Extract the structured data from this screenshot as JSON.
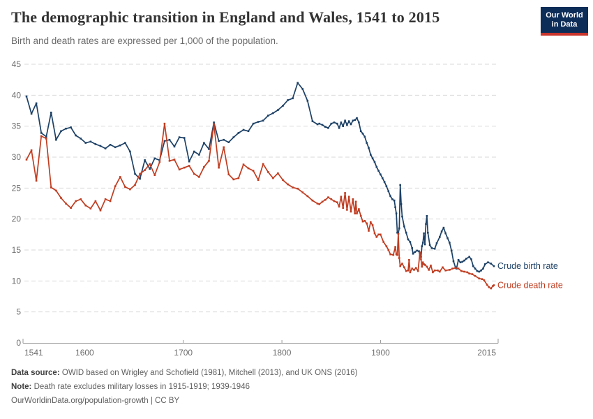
{
  "header": {
    "title": "The demographic transition in England and Wales, 1541 to 2015",
    "subtitle": "Birth and death rates are expressed per 1,000 of the population.",
    "logo": {
      "line1": "Our World",
      "line2": "in Data",
      "bg_color": "#0d2d59",
      "accent_color": "#c9342c"
    }
  },
  "footer": {
    "source_label": "Data source:",
    "source_text": "OWID based on Wrigley and Schofield (1981), Mitchell (2013), and UK ONS (2016)",
    "note_label": "Note:",
    "note_text": "Death rate excludes military losses in 1915-1919; 1939-1946",
    "license_text": "OurWorldinData.org/population-growth | CC BY"
  },
  "chart_data": {
    "type": "line",
    "title": "The demographic transition in England and Wales, 1541 to 2015",
    "subtitle": "Birth and death rates are expressed per 1,000 of the population.",
    "xlabel": "",
    "ylabel": "",
    "xlim": [
      1541,
      2015
    ],
    "ylim": [
      0,
      45
    ],
    "yticks": [
      0,
      5,
      10,
      15,
      20,
      25,
      30,
      35,
      40,
      45
    ],
    "xticks": [
      1541,
      1600,
      1700,
      1800,
      1900,
      2015
    ],
    "xtick_marks": [
      1700,
      1800,
      1900
    ],
    "grid": "horizontal-dashed",
    "legend_position": "end-of-line-labels",
    "marker": "square",
    "axis_color": "#9a9a9a",
    "grid_color": "#d9d9d9",
    "tick_label_color": "#6e6e6e",
    "series": [
      {
        "name": "Crude birth rate",
        "color": "#1d4166",
        "points": [
          [
            1541,
            39.8
          ],
          [
            1546,
            37.0
          ],
          [
            1551,
            38.7
          ],
          [
            1556,
            33.9
          ],
          [
            1561,
            33.3
          ],
          [
            1566,
            37.2
          ],
          [
            1571,
            32.8
          ],
          [
            1576,
            34.2
          ],
          [
            1581,
            34.6
          ],
          [
            1586,
            34.8
          ],
          [
            1591,
            33.5
          ],
          [
            1596,
            33.0
          ],
          [
            1601,
            32.3
          ],
          [
            1606,
            32.5
          ],
          [
            1611,
            32.1
          ],
          [
            1616,
            31.8
          ],
          [
            1621,
            31.4
          ],
          [
            1626,
            32.0
          ],
          [
            1631,
            31.6
          ],
          [
            1636,
            31.9
          ],
          [
            1641,
            32.3
          ],
          [
            1646,
            30.9
          ],
          [
            1651,
            27.3
          ],
          [
            1656,
            26.5
          ],
          [
            1661,
            29.5
          ],
          [
            1666,
            28.1
          ],
          [
            1671,
            29.8
          ],
          [
            1676,
            29.5
          ],
          [
            1681,
            32.6
          ],
          [
            1686,
            32.8
          ],
          [
            1691,
            31.7
          ],
          [
            1696,
            33.2
          ],
          [
            1701,
            33.1
          ],
          [
            1706,
            29.3
          ],
          [
            1711,
            30.9
          ],
          [
            1716,
            30.4
          ],
          [
            1721,
            32.3
          ],
          [
            1726,
            31.3
          ],
          [
            1731,
            35.6
          ],
          [
            1736,
            32.6
          ],
          [
            1741,
            32.8
          ],
          [
            1746,
            32.4
          ],
          [
            1751,
            33.2
          ],
          [
            1756,
            33.9
          ],
          [
            1761,
            34.4
          ],
          [
            1766,
            34.2
          ],
          [
            1771,
            35.4
          ],
          [
            1776,
            35.7
          ],
          [
            1781,
            35.9
          ],
          [
            1786,
            36.7
          ],
          [
            1791,
            37.1
          ],
          [
            1796,
            37.6
          ],
          [
            1801,
            38.3
          ],
          [
            1806,
            39.2
          ],
          [
            1811,
            39.5
          ],
          [
            1816,
            42.0
          ],
          [
            1821,
            41.0
          ],
          [
            1826,
            39.1
          ],
          [
            1831,
            35.8
          ],
          [
            1836,
            35.3
          ],
          [
            1838,
            35.4
          ],
          [
            1841,
            35.2
          ],
          [
            1844,
            34.9
          ],
          [
            1847,
            34.7
          ],
          [
            1850,
            35.4
          ],
          [
            1853,
            35.6
          ],
          [
            1856,
            35.4
          ],
          [
            1858,
            34.7
          ],
          [
            1860,
            35.6
          ],
          [
            1862,
            35.0
          ],
          [
            1864,
            35.9
          ],
          [
            1866,
            35.2
          ],
          [
            1868,
            35.8
          ],
          [
            1870,
            35.3
          ],
          [
            1872,
            35.9
          ],
          [
            1874,
            36.0
          ],
          [
            1876,
            36.3
          ],
          [
            1878,
            35.6
          ],
          [
            1880,
            34.2
          ],
          [
            1882,
            33.8
          ],
          [
            1884,
            33.3
          ],
          [
            1886,
            32.3
          ],
          [
            1888,
            31.5
          ],
          [
            1890,
            30.4
          ],
          [
            1892,
            29.8
          ],
          [
            1894,
            29.2
          ],
          [
            1896,
            28.4
          ],
          [
            1898,
            27.8
          ],
          [
            1900,
            27.2
          ],
          [
            1902,
            26.6
          ],
          [
            1904,
            26.0
          ],
          [
            1906,
            25.3
          ],
          [
            1908,
            24.5
          ],
          [
            1910,
            23.7
          ],
          [
            1912,
            23.2
          ],
          [
            1914,
            23.0
          ],
          [
            1915,
            21.9
          ],
          [
            1916,
            20.9
          ],
          [
            1917,
            17.8
          ],
          [
            1918,
            17.7
          ],
          [
            1919,
            18.5
          ],
          [
            1920,
            25.5
          ],
          [
            1921,
            22.4
          ],
          [
            1922,
            20.4
          ],
          [
            1924,
            18.8
          ],
          [
            1926,
            17.8
          ],
          [
            1928,
            16.7
          ],
          [
            1930,
            16.3
          ],
          [
            1932,
            15.3
          ],
          [
            1933,
            14.4
          ],
          [
            1935,
            14.7
          ],
          [
            1937,
            14.9
          ],
          [
            1939,
            14.8
          ],
          [
            1940,
            14.1
          ],
          [
            1941,
            13.9
          ],
          [
            1942,
            15.6
          ],
          [
            1943,
            16.2
          ],
          [
            1944,
            17.7
          ],
          [
            1945,
            15.9
          ],
          [
            1946,
            19.2
          ],
          [
            1947,
            20.5
          ],
          [
            1948,
            17.8
          ],
          [
            1950,
            15.8
          ],
          [
            1952,
            15.3
          ],
          [
            1955,
            15.2
          ],
          [
            1957,
            16.1
          ],
          [
            1960,
            17.1
          ],
          [
            1962,
            18.0
          ],
          [
            1964,
            18.6
          ],
          [
            1966,
            17.7
          ],
          [
            1968,
            16.9
          ],
          [
            1970,
            16.2
          ],
          [
            1972,
            14.9
          ],
          [
            1974,
            13.2
          ],
          [
            1976,
            12.2
          ],
          [
            1977,
            12.0
          ],
          [
            1979,
            13.4
          ],
          [
            1981,
            13.0
          ],
          [
            1983,
            13.1
          ],
          [
            1985,
            13.3
          ],
          [
            1987,
            13.6
          ],
          [
            1990,
            13.9
          ],
          [
            1992,
            13.5
          ],
          [
            1994,
            12.4
          ],
          [
            1996,
            12.0
          ],
          [
            1998,
            11.6
          ],
          [
            2000,
            11.5
          ],
          [
            2002,
            11.7
          ],
          [
            2004,
            12.0
          ],
          [
            2006,
            12.7
          ],
          [
            2009,
            13.0
          ],
          [
            2012,
            12.8
          ],
          [
            2015,
            12.4
          ]
        ]
      },
      {
        "name": "Crude death rate",
        "color": "#c03d21",
        "points": [
          [
            1541,
            29.6
          ],
          [
            1546,
            31.1
          ],
          [
            1551,
            26.2
          ],
          [
            1556,
            33.4
          ],
          [
            1561,
            33.0
          ],
          [
            1566,
            25.1
          ],
          [
            1571,
            24.6
          ],
          [
            1576,
            23.4
          ],
          [
            1581,
            22.5
          ],
          [
            1586,
            21.8
          ],
          [
            1591,
            22.9
          ],
          [
            1596,
            23.2
          ],
          [
            1601,
            22.2
          ],
          [
            1606,
            21.7
          ],
          [
            1611,
            22.9
          ],
          [
            1616,
            21.4
          ],
          [
            1621,
            23.2
          ],
          [
            1626,
            22.9
          ],
          [
            1631,
            25.3
          ],
          [
            1636,
            26.8
          ],
          [
            1641,
            25.2
          ],
          [
            1646,
            24.8
          ],
          [
            1651,
            25.5
          ],
          [
            1656,
            27.3
          ],
          [
            1661,
            27.9
          ],
          [
            1666,
            28.9
          ],
          [
            1671,
            27.1
          ],
          [
            1676,
            29.2
          ],
          [
            1681,
            35.4
          ],
          [
            1686,
            29.4
          ],
          [
            1691,
            29.6
          ],
          [
            1696,
            28.0
          ],
          [
            1701,
            28.3
          ],
          [
            1706,
            28.6
          ],
          [
            1711,
            27.3
          ],
          [
            1716,
            26.8
          ],
          [
            1721,
            28.4
          ],
          [
            1726,
            29.4
          ],
          [
            1731,
            35.3
          ],
          [
            1736,
            28.3
          ],
          [
            1741,
            31.6
          ],
          [
            1746,
            27.2
          ],
          [
            1751,
            26.4
          ],
          [
            1756,
            26.6
          ],
          [
            1761,
            28.8
          ],
          [
            1766,
            28.2
          ],
          [
            1771,
            27.8
          ],
          [
            1776,
            26.3
          ],
          [
            1781,
            28.9
          ],
          [
            1786,
            27.6
          ],
          [
            1791,
            26.6
          ],
          [
            1796,
            27.4
          ],
          [
            1801,
            26.3
          ],
          [
            1806,
            25.6
          ],
          [
            1811,
            25.1
          ],
          [
            1816,
            24.9
          ],
          [
            1821,
            24.3
          ],
          [
            1826,
            23.7
          ],
          [
            1831,
            23.0
          ],
          [
            1836,
            22.5
          ],
          [
            1838,
            22.4
          ],
          [
            1841,
            22.8
          ],
          [
            1844,
            23.1
          ],
          [
            1847,
            23.5
          ],
          [
            1850,
            23.2
          ],
          [
            1853,
            22.9
          ],
          [
            1856,
            22.7
          ],
          [
            1858,
            22.0
          ],
          [
            1860,
            23.6
          ],
          [
            1862,
            21.8
          ],
          [
            1864,
            24.2
          ],
          [
            1866,
            21.5
          ],
          [
            1868,
            23.6
          ],
          [
            1870,
            21.2
          ],
          [
            1872,
            23.2
          ],
          [
            1874,
            20.9
          ],
          [
            1875,
            22.8
          ],
          [
            1876,
            20.9
          ],
          [
            1878,
            21.6
          ],
          [
            1880,
            20.5
          ],
          [
            1882,
            19.6
          ],
          [
            1884,
            19.7
          ],
          [
            1886,
            19.3
          ],
          [
            1888,
            18.1
          ],
          [
            1890,
            19.5
          ],
          [
            1892,
            19.0
          ],
          [
            1894,
            17.7
          ],
          [
            1896,
            17.1
          ],
          [
            1898,
            17.5
          ],
          [
            1900,
            17.5
          ],
          [
            1903,
            16.3
          ],
          [
            1906,
            15.6
          ],
          [
            1908,
            15.0
          ],
          [
            1910,
            14.3
          ],
          [
            1913,
            14.2
          ],
          [
            1915,
            15.5
          ],
          [
            1916,
            14.3
          ],
          [
            1917,
            14.2
          ],
          [
            1918,
            17.6
          ],
          [
            1919,
            13.7
          ],
          [
            1920,
            12.4
          ],
          [
            1922,
            12.8
          ],
          [
            1924,
            12.2
          ],
          [
            1926,
            11.6
          ],
          [
            1928,
            11.7
          ],
          [
            1929,
            13.4
          ],
          [
            1930,
            11.4
          ],
          [
            1932,
            12.0
          ],
          [
            1934,
            11.8
          ],
          [
            1936,
            12.1
          ],
          [
            1938,
            11.6
          ],
          [
            1940,
            14.6
          ],
          [
            1941,
            13.5
          ],
          [
            1942,
            12.3
          ],
          [
            1943,
            13.0
          ],
          [
            1944,
            12.7
          ],
          [
            1945,
            12.6
          ],
          [
            1947,
            12.3
          ],
          [
            1949,
            11.8
          ],
          [
            1951,
            12.5
          ],
          [
            1953,
            11.4
          ],
          [
            1955,
            11.7
          ],
          [
            1958,
            11.7
          ],
          [
            1960,
            11.5
          ],
          [
            1963,
            12.2
          ],
          [
            1966,
            11.7
          ],
          [
            1970,
            11.8
          ],
          [
            1973,
            12.0
          ],
          [
            1976,
            12.1
          ],
          [
            1979,
            12.0
          ],
          [
            1982,
            11.6
          ],
          [
            1985,
            11.5
          ],
          [
            1988,
            11.4
          ],
          [
            1990,
            11.2
          ],
          [
            1993,
            11.1
          ],
          [
            1996,
            10.8
          ],
          [
            2000,
            10.4
          ],
          [
            2003,
            10.3
          ],
          [
            2005,
            10.1
          ],
          [
            2008,
            9.4
          ],
          [
            2010,
            9.0
          ],
          [
            2012,
            8.8
          ],
          [
            2014,
            9.2
          ],
          [
            2015,
            9.3
          ]
        ]
      }
    ]
  }
}
